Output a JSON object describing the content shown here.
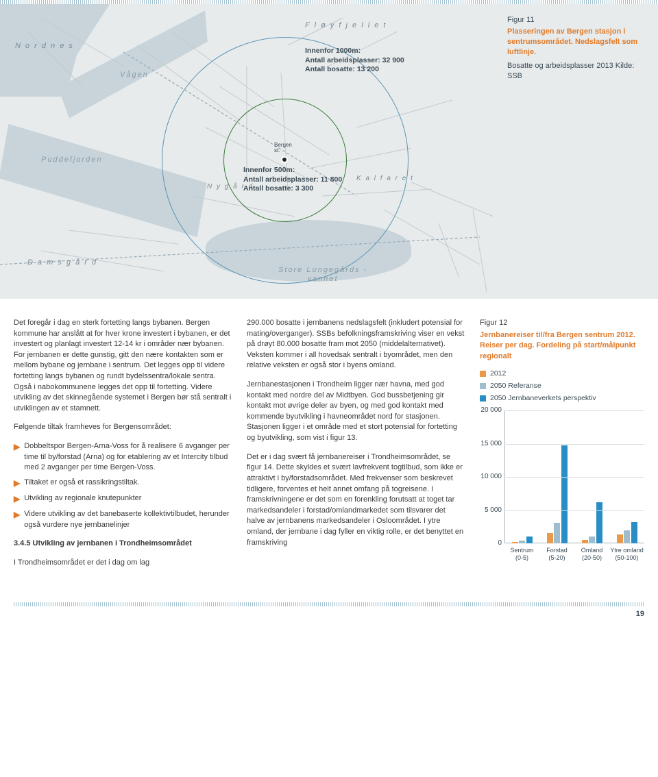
{
  "page_number": "19",
  "map": {
    "labels": {
      "nordnes": "N o r d n e s",
      "vagen": "Vågen",
      "floyfjellet": "F l ø y f j e l l e t",
      "puddefjorden": "Puddefjorden",
      "nygard": "N y g å r d",
      "kalfaret": "K a l f a r e t",
      "damsgard": "D a m s g å r d",
      "store": "Store Lungegårds -",
      "vannet": "vannet",
      "bergen_st_1": "Bergen",
      "bergen_st_2": "st."
    },
    "box1000_title": "Innenfor 1000m:",
    "box1000_l1": "Antall arbeidsplasser: 32 900",
    "box1000_l2": "Antall bosatte: 13 200",
    "box500_title": "Innenfor 500m:",
    "box500_l1": "Antall arbeidsplasser: 11 800",
    "box500_l2": "Antall bosatte: 3 300",
    "caption_num": "Figur 11",
    "caption_desc": "Plasseringen av Bergen stasjon i sentrums­området. Nedslagsfelt som luftlinje.",
    "caption_src": "Bosatte og arbeidsplasser 2013 Kilde: SSB",
    "colors": {
      "land": "#e8ebec",
      "water": "#c8d4da",
      "circle_inner": "#3a7a3a",
      "circle_outer": "#5a95b5"
    }
  },
  "col1": {
    "p1": "Det foregår i dag en sterk fortetting langs bybanen. Bergen kommune har anslått at for hver krone investert i bybanen, er det investert og planlagt investert 12-14 kr i områder nær bybanen. For jernbanen er dette gunstig, gitt den nære kontakten som er mellom bybane og jernbane i sentrum. Det legges opp til videre fortetting langs bybanen og rundt bydelssentra/lokale sentra. Også i nabokommunene legges det opp til fortetting. Videre utvikling av det skinnegående systemet i Bergen bør stå sentralt i utviklingen av et stamnett.",
    "p2": "Følgende tiltak framheves for Bergensområdet:",
    "b1": "Dobbeltspor Bergen-Arna-Voss for å realisere 6 avganger per time til by/forstad (Arna) og for etablering av et Intercity tilbud med 2 avganger per time Bergen-Voss.",
    "b2": "Tiltaket er også et rassikringstiltak.",
    "b3": "Utvikling av regionale knutepunkter",
    "b4": "Videre utvikling av det banebaserte kollektivtilbudet, herunder også vurdere nye jernbanelinjer",
    "h3": "3.4.5 Utvikling av jernbanen i Trondheimsområdet",
    "p3": "I Trondheimsområdet er det i dag om lag"
  },
  "col2": {
    "p1": "290.000 bosatte i jernbanens nedslagsfelt (inkludert potensial for mating/overganger). SSBs befolkningsframskriving viser en vekst på drøyt 80.000 bosatte fram mot 2050 (middelalternativet). Veksten kommer i all hovedsak sentralt i byområdet, men den relative veksten er også stor i byens omland.",
    "p2": "Jernbanestasjonen i Trondheim ligger nær havna, med god kontakt med nordre del av Midtbyen. God bussbetjening gir kontakt mot øvrige deler av byen, og med god kontakt med kommende byutvikling i havneområdet nord for stasjonen. Stasjonen ligger i et område med et stort potensial for fortetting og byutvikling, som vist i figur 13.",
    "p3": "Det er i dag svært få jernbanereiser i Trondheimsområdet, se figur 14. Dette skyldes et svært lavfrekvent togtilbud, som ikke er attraktivt i by/forstadsområdet. Med frekvenser som beskrevet tidligere, forventes et helt annet omfang på togreisene. I framskrivningene er det som en forenkling forutsatt at toget tar markedsandeler i forstad/omlandmarkedet som tilsvarer det halve av jernbanens markedsandeler i Osloområdet. I ytre omland, der jernbane i dag fyller en viktig rolle, er det benyttet en framskriving"
  },
  "chart": {
    "fnum": "Figur 12",
    "title": "Jernbanereiser til/fra Bergen sentrum 2012.",
    "subtitle": "Reiser per dag. Fordeling på start/målpunkt regionalt",
    "legend": [
      {
        "label": "2012",
        "color": "#e89a4a"
      },
      {
        "label": "2050 Referanse",
        "color": "#9ebdce"
      },
      {
        "label": "2050 Jernbaneverkets perspektiv",
        "color": "#2a8ec6"
      }
    ],
    "ymax": 20000,
    "ytick": 5000,
    "yticks": [
      "0",
      "5 000",
      "10 000",
      "15 000",
      "20 000"
    ],
    "categories": [
      {
        "name": "Sentrum",
        "range": "(0-5)",
        "values": [
          200,
          400,
          1000
        ]
      },
      {
        "name": "Forstad",
        "range": "(5-20)",
        "values": [
          1600,
          3100,
          14800
        ]
      },
      {
        "name": "Omland",
        "range": "(20-50)",
        "values": [
          500,
          1100,
          6200
        ]
      },
      {
        "name": "Ytre omland",
        "range": "(50-100)",
        "values": [
          1400,
          2000,
          3200
        ]
      }
    ]
  }
}
